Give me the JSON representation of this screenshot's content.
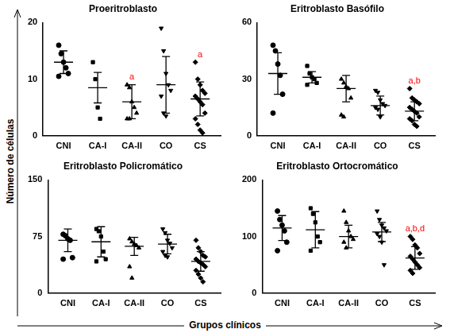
{
  "x_label": "Grupos clínicos",
  "y_label": "Número de células",
  "chart_data": [
    {
      "type": "scatter",
      "title": "Proeritroblasto",
      "ylim": [
        0,
        20
      ],
      "yticks": [
        0,
        10,
        20
      ],
      "grid": false,
      "series": [
        {
          "name": "CNI",
          "marker": "circle",
          "color": "#000000",
          "values": [
            16,
            14.5,
            13,
            12,
            11,
            10.5
          ],
          "mean": 13,
          "sd": 2
        },
        {
          "name": "CA-I",
          "marker": "square",
          "color": "#000000",
          "values": [
            13,
            10,
            5,
            3
          ],
          "mean": 8.5,
          "sd": 2.7
        },
        {
          "name": "CA-II",
          "marker": "triangle",
          "color": "#000000",
          "values": [
            9,
            8.5,
            6,
            5,
            4,
            3,
            3
          ],
          "mean": 6,
          "sd": 3
        },
        {
          "name": "CO",
          "marker": "triangle_down",
          "color": "#000000",
          "values": [
            19,
            15,
            11,
            9,
            8,
            7,
            4,
            3.5
          ],
          "mean": 9,
          "sd": 5
        },
        {
          "name": "CS",
          "marker": "diamond",
          "color": "#000000",
          "values": [
            13,
            10,
            9,
            8,
            7.5,
            7,
            6.5,
            6,
            5.5,
            4,
            3,
            2,
            1,
            0.5
          ],
          "mean": 6.5,
          "sd": 3
        }
      ],
      "annotations": [
        {
          "series": "CA-II",
          "text": "a",
          "color": "#ff0000"
        },
        {
          "series": "CS",
          "text": "a",
          "color": "#ff0000"
        }
      ]
    },
    {
      "type": "scatter",
      "title": "Eritroblasto Basófilo",
      "ylim": [
        0,
        60
      ],
      "yticks": [
        0,
        30,
        60
      ],
      "grid": false,
      "series": [
        {
          "name": "CNI",
          "marker": "circle",
          "color": "#000000",
          "values": [
            48,
            45,
            38,
            32,
            22,
            12
          ],
          "mean": 33,
          "sd": 11
        },
        {
          "name": "CA-I",
          "marker": "square",
          "color": "#000000",
          "values": [
            37,
            33,
            31,
            30,
            28,
            27
          ],
          "mean": 31,
          "sd": 3
        },
        {
          "name": "CA-II",
          "marker": "triangle",
          "color": "#000000",
          "values": [
            30,
            28,
            26,
            25,
            20,
            11,
            10
          ],
          "mean": 25,
          "sd": 7
        },
        {
          "name": "CO",
          "marker": "triangle_down",
          "color": "#000000",
          "values": [
            24,
            23,
            19,
            17,
            16,
            15,
            14,
            10
          ],
          "mean": 16,
          "sd": 5
        },
        {
          "name": "CS",
          "marker": "diamond",
          "color": "#000000",
          "values": [
            25,
            20,
            19,
            18,
            17,
            15,
            14,
            13,
            12,
            10,
            9,
            8,
            6,
            5
          ],
          "mean": 13,
          "sd": 5
        }
      ],
      "annotations": [
        {
          "series": "CS",
          "text": "a,b",
          "color": "#ff0000"
        }
      ]
    },
    {
      "type": "scatter",
      "title": "Eritroblasto Policromático",
      "ylim": [
        0,
        150
      ],
      "yticks": [
        0,
        75,
        150
      ],
      "grid": false,
      "series": [
        {
          "name": "CNI",
          "marker": "circle",
          "color": "#000000",
          "values": [
            78,
            76,
            72,
            70,
            47,
            45
          ],
          "mean": 70,
          "sd": 15
        },
        {
          "name": "CA-I",
          "marker": "square",
          "color": "#000000",
          "values": [
            85,
            82,
            75,
            55,
            45,
            42
          ],
          "mean": 68,
          "sd": 20
        },
        {
          "name": "CA-II",
          "marker": "triangle",
          "color": "#000000",
          "values": [
            72,
            68,
            65,
            63,
            60,
            35,
            20
          ],
          "mean": 62,
          "sd": 12
        },
        {
          "name": "CO",
          "marker": "triangle_down",
          "color": "#000000",
          "values": [
            85,
            80,
            70,
            66,
            60,
            55,
            50,
            48
          ],
          "mean": 65,
          "sd": 13
        },
        {
          "name": "CS",
          "marker": "diamond",
          "color": "#000000",
          "values": [
            70,
            60,
            55,
            50,
            48,
            45,
            42,
            40,
            38,
            35,
            30,
            25,
            20,
            15
          ],
          "mean": 42,
          "sd": 13
        }
      ],
      "annotations": []
    },
    {
      "type": "scatter",
      "title": "Eritroblasto Ortocromático",
      "ylim": [
        0,
        200
      ],
      "yticks": [
        0,
        100,
        200
      ],
      "grid": false,
      "series": [
        {
          "name": "CNI",
          "marker": "circle",
          "color": "#000000",
          "values": [
            145,
            130,
            120,
            110,
            90,
            75
          ],
          "mean": 115,
          "sd": 22
        },
        {
          "name": "CA-I",
          "marker": "square",
          "color": "#000000",
          "values": [
            150,
            140,
            125,
            100,
            90,
            75
          ],
          "mean": 112,
          "sd": 32
        },
        {
          "name": "CA-II",
          "marker": "triangle",
          "color": "#000000",
          "values": [
            145,
            125,
            110,
            100,
            95,
            90,
            80
          ],
          "mean": 100,
          "sd": 20
        },
        {
          "name": "CO",
          "marker": "triangle_down",
          "color": "#000000",
          "values": [
            145,
            130,
            120,
            115,
            110,
            105,
            100,
            90,
            50
          ],
          "mean": 108,
          "sd": 17
        },
        {
          "name": "CS",
          "marker": "diamond",
          "color": "#000000",
          "values": [
            100,
            95,
            85,
            80,
            70,
            65,
            60,
            55,
            50,
            45,
            40,
            35
          ],
          "mean": 62,
          "sd": 20
        }
      ],
      "annotations": [
        {
          "series": "CS",
          "text": "a,b,d",
          "color": "#ff0000"
        }
      ]
    }
  ]
}
